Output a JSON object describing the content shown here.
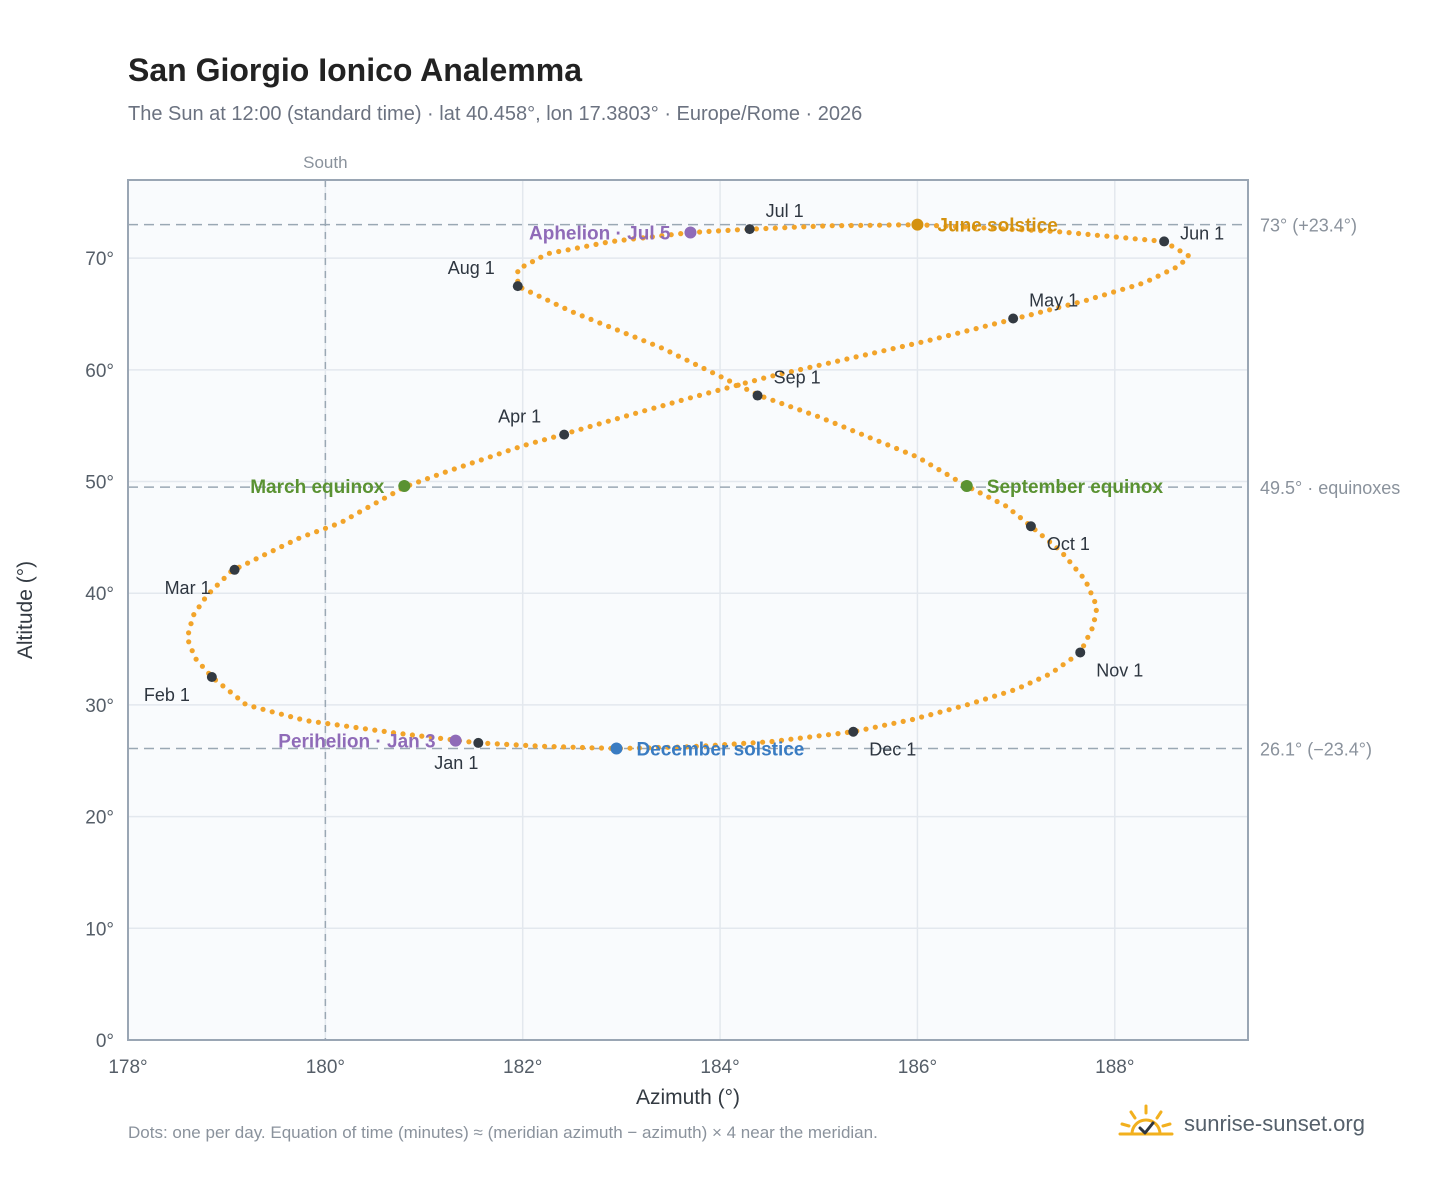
{
  "header": {
    "title": "San Giorgio Ionico Analemma",
    "subtitle": "The Sun at 12:00 (standard time) · lat 40.458°, lon 17.3803° · Europe/Rome · 2026"
  },
  "footer": {
    "note": "Dots: one per day. Equation of time (minutes) ≈ (meridian azimuth − azimuth) × 4 near the meridian.",
    "brand": "sunrise-sunset.org",
    "brand_icon": "sun-check-icon"
  },
  "colors": {
    "curve": "#f2a42a",
    "month_marker": "#333a42",
    "june_solstice": "#d4920f",
    "december_solstice": "#3a7cc2",
    "equinox": "#5a9232",
    "perihelion_aphelion": "#8f6bb8",
    "reference_line": "#9aa8b4",
    "plot_bg": "#f9fbfd",
    "grid": "#e3e8ee"
  },
  "chart_data": {
    "type": "scatter",
    "xlabel": "Azimuth (°)",
    "ylabel": "Altitude (°)",
    "xlim": [
      178,
      189.35
    ],
    "ylim": [
      0,
      77
    ],
    "x_ticks": [
      178,
      180,
      182,
      184,
      186,
      188
    ],
    "y_ticks": [
      0,
      10,
      20,
      30,
      40,
      50,
      60,
      70
    ],
    "tick_suffix": "°",
    "grid": true,
    "meridian": {
      "azimuth": 180,
      "label": "South"
    },
    "reference_lines": [
      {
        "altitude": 73.0,
        "label": "73° (+23.4°)"
      },
      {
        "altitude": 49.5,
        "label": "49.5° · equinoxes"
      },
      {
        "altitude": 26.1,
        "label": "26.1° (−23.4°)"
      }
    ],
    "series": [
      {
        "description_marker": "daily dots",
        "points": [
          [
            181.55,
            26.6
          ],
          [
            180.7,
            27.5
          ],
          [
            179.8,
            28.6
          ],
          [
            179.2,
            30.0
          ],
          [
            178.85,
            32.5
          ],
          [
            178.68,
            34.2
          ],
          [
            178.6,
            36.0
          ],
          [
            178.66,
            38.0
          ],
          [
            178.8,
            39.8
          ],
          [
            179.05,
            42.0
          ],
          [
            179.35,
            43.3
          ],
          [
            179.75,
            45.0
          ],
          [
            180.15,
            46.3
          ],
          [
            180.8,
            49.5
          ],
          [
            181.2,
            50.8
          ],
          [
            181.6,
            52.0
          ],
          [
            182.0,
            53.2
          ],
          [
            182.4,
            54.2
          ],
          [
            183.1,
            56.0
          ],
          [
            183.7,
            57.5
          ],
          [
            184.5,
            59.4
          ],
          [
            185.3,
            61.0
          ],
          [
            186.1,
            62.6
          ],
          [
            187.0,
            64.6
          ],
          [
            187.7,
            66.2
          ],
          [
            188.3,
            67.8
          ],
          [
            188.65,
            69.3
          ],
          [
            188.75,
            70.2
          ],
          [
            188.5,
            71.5
          ],
          [
            187.4,
            72.4
          ],
          [
            186.0,
            73.0
          ],
          [
            185.1,
            72.9
          ],
          [
            184.3,
            72.6
          ],
          [
            183.7,
            72.3
          ],
          [
            182.9,
            71.5
          ],
          [
            182.25,
            70.4
          ],
          [
            181.95,
            69.0
          ],
          [
            181.95,
            67.5
          ],
          [
            182.5,
            65.2
          ],
          [
            183.4,
            62.0
          ],
          [
            184.4,
            57.7
          ],
          [
            185.0,
            55.8
          ],
          [
            186.0,
            52.2
          ],
          [
            186.5,
            49.6
          ],
          [
            186.9,
            47.8
          ],
          [
            187.15,
            46.0
          ],
          [
            187.45,
            43.8
          ],
          [
            187.7,
            41.2
          ],
          [
            187.82,
            38.8
          ],
          [
            187.78,
            37.0
          ],
          [
            187.65,
            34.7
          ],
          [
            187.35,
            32.8
          ],
          [
            187.0,
            31.4
          ],
          [
            186.5,
            30.0
          ],
          [
            185.95,
            28.7
          ],
          [
            185.35,
            27.6
          ],
          [
            184.5,
            26.7
          ],
          [
            183.7,
            26.25
          ],
          [
            182.95,
            26.1
          ],
          [
            182.2,
            26.3
          ],
          [
            181.55,
            26.6
          ]
        ]
      }
    ],
    "month_markers": [
      {
        "label": "Jan 1",
        "x": 181.55,
        "y": 26.6
      },
      {
        "label": "Feb 1",
        "x": 178.85,
        "y": 32.5
      },
      {
        "label": "Mar 1",
        "x": 179.08,
        "y": 42.1
      },
      {
        "label": "Apr 1",
        "x": 182.42,
        "y": 54.2
      },
      {
        "label": "May 1",
        "x": 186.97,
        "y": 64.6
      },
      {
        "label": "Jun 1",
        "x": 188.5,
        "y": 71.5
      },
      {
        "label": "Jul 1",
        "x": 184.3,
        "y": 72.6
      },
      {
        "label": "Aug 1",
        "x": 181.95,
        "y": 67.5
      },
      {
        "label": "Sep 1",
        "x": 184.38,
        "y": 57.7
      },
      {
        "label": "Oct 1",
        "x": 187.15,
        "y": 46.0
      },
      {
        "label": "Nov 1",
        "x": 187.65,
        "y": 34.7
      },
      {
        "label": "Dec 1",
        "x": 185.35,
        "y": 27.6
      }
    ],
    "events": [
      {
        "label": "June solstice",
        "x": 186.0,
        "y": 73.0,
        "color_key": "june_solstice"
      },
      {
        "label": "December solstice",
        "x": 182.95,
        "y": 26.1,
        "color_key": "december_solstice"
      },
      {
        "label": "March equinox",
        "x": 180.8,
        "y": 49.6,
        "color_key": "equinox"
      },
      {
        "label": "September equinox",
        "x": 186.5,
        "y": 49.6,
        "color_key": "equinox"
      },
      {
        "label": "Perihelion · Jan 3",
        "x": 181.32,
        "y": 26.8,
        "color_key": "perihelion_aphelion"
      },
      {
        "label": "Aphelion · Jul 5",
        "x": 183.7,
        "y": 72.3,
        "color_key": "perihelion_aphelion"
      }
    ]
  }
}
